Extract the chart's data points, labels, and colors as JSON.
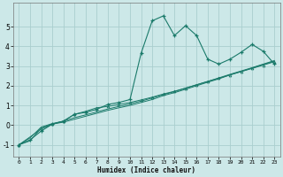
{
  "xlabel": "Humidex (Indice chaleur)",
  "bg_color": "#cce8e8",
  "grid_color": "#aacece",
  "line_color": "#1a7a6a",
  "xlim": [
    -0.5,
    23.5
  ],
  "ylim": [
    -1.6,
    6.2
  ],
  "xticks": [
    0,
    1,
    2,
    3,
    4,
    5,
    6,
    7,
    8,
    9,
    10,
    11,
    12,
    13,
    14,
    15,
    16,
    17,
    18,
    19,
    20,
    21,
    22,
    23
  ],
  "yticks": [
    -1,
    0,
    1,
    2,
    3,
    4,
    5
  ],
  "s1_x": [
    0,
    1,
    2,
    3,
    4,
    5,
    6,
    7,
    8,
    9,
    10,
    11,
    12,
    13,
    14,
    15,
    16,
    17,
    18,
    19,
    20,
    21,
    22,
    23
  ],
  "s1_y": [
    -1.0,
    -0.75,
    -0.3,
    0.05,
    0.2,
    0.55,
    0.65,
    0.8,
    1.05,
    1.15,
    1.3,
    3.65,
    5.3,
    5.55,
    4.55,
    5.05,
    4.55,
    3.35,
    3.1,
    3.35,
    3.7,
    4.1,
    3.75,
    3.1
  ],
  "s2_x": [
    0,
    1,
    2,
    3,
    4,
    5,
    6,
    7,
    8,
    9,
    10,
    11,
    12,
    13,
    14,
    15,
    16,
    17,
    18,
    19,
    20,
    21,
    22,
    23
  ],
  "s2_y": [
    -1.0,
    -0.8,
    -0.15,
    0.05,
    0.15,
    0.3,
    0.45,
    0.6,
    0.75,
    0.88,
    1.0,
    1.15,
    1.3,
    1.5,
    1.65,
    1.82,
    2.0,
    2.18,
    2.35,
    2.55,
    2.72,
    2.9,
    3.08,
    3.25
  ],
  "s3_x": [
    0,
    2,
    3,
    4,
    5,
    6,
    7,
    8,
    9,
    10,
    11,
    12,
    13,
    14,
    15,
    16,
    17,
    18,
    19,
    20,
    21,
    22,
    23
  ],
  "s3_y": [
    -1.0,
    -0.2,
    0.05,
    0.2,
    0.55,
    0.7,
    0.88,
    0.95,
    1.05,
    1.15,
    1.28,
    1.42,
    1.58,
    1.72,
    1.88,
    2.05,
    2.22,
    2.38,
    2.55,
    2.72,
    2.88,
    3.05,
    3.22
  ],
  "s4_x": [
    0,
    1,
    2,
    3,
    4,
    5,
    6,
    7,
    8,
    9,
    10,
    11,
    12,
    13,
    14,
    15,
    16,
    17,
    18,
    19,
    20,
    21,
    22,
    23
  ],
  "s4_y": [
    -1.0,
    -0.65,
    -0.1,
    0.08,
    0.2,
    0.38,
    0.52,
    0.67,
    0.82,
    0.95,
    1.08,
    1.22,
    1.38,
    1.55,
    1.7,
    1.88,
    2.05,
    2.22,
    2.4,
    2.58,
    2.75,
    2.92,
    3.1,
    3.28
  ]
}
